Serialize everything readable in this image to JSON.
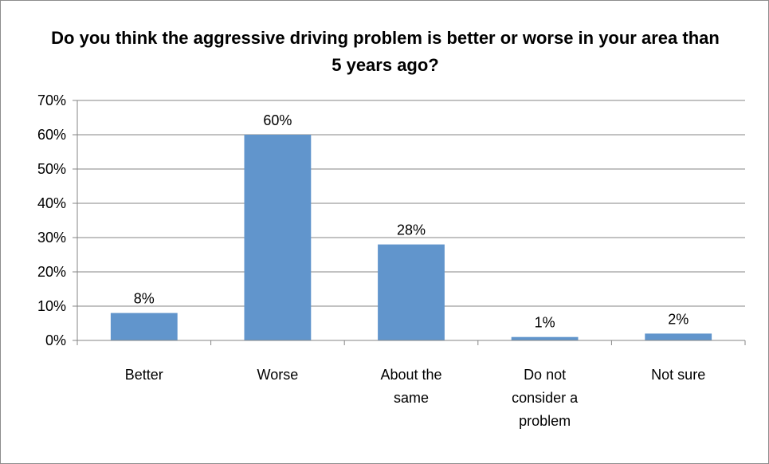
{
  "chart_data": {
    "type": "bar",
    "title": "Do you think the aggressive driving problem is better or worse in your area than 5 years ago?",
    "xlabel": "",
    "ylabel": "",
    "categories": [
      "Better",
      "Worse",
      "About the same",
      "Do not consider a problem",
      "Not sure"
    ],
    "category_lines": [
      [
        "Better"
      ],
      [
        "Worse"
      ],
      [
        "About the",
        "same"
      ],
      [
        "Do not",
        "consider a",
        "problem"
      ],
      [
        "Not sure"
      ]
    ],
    "values": [
      8,
      60,
      28,
      1,
      2
    ],
    "data_labels": [
      "8%",
      "60%",
      "28%",
      "1%",
      "2%"
    ],
    "ylim": [
      0,
      70
    ],
    "yticks": [
      0,
      10,
      20,
      30,
      40,
      50,
      60,
      70
    ],
    "ytick_labels": [
      "0%",
      "10%",
      "20%",
      "30%",
      "40%",
      "50%",
      "60%",
      "70%"
    ],
    "grid": true,
    "legend": "none",
    "colors": {
      "bar": "#6195cc",
      "grid": "#868686",
      "axis": "#868686",
      "frame": "#8c8c8c"
    }
  }
}
